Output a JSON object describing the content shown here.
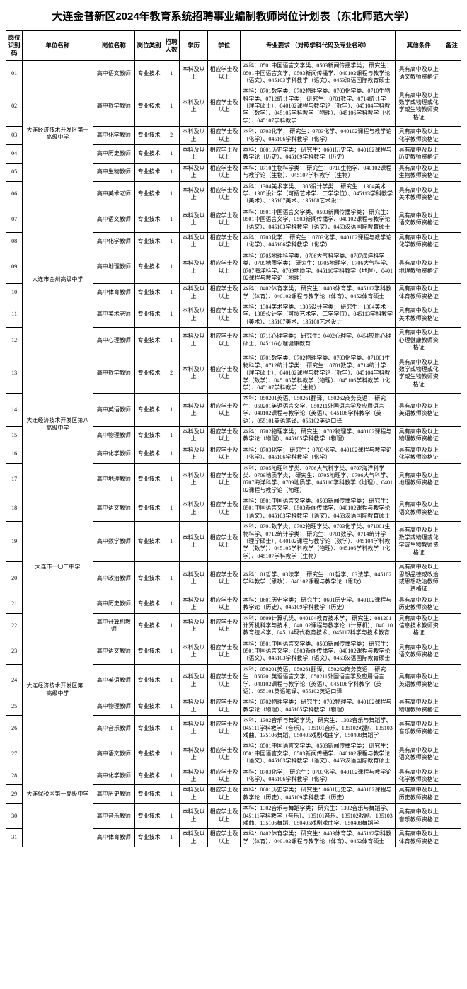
{
  "title": "大连金普新区2024年教育系统招聘事业编制教师岗位计划表（东北师范大学）",
  "headers": {
    "id": "岗位识别码",
    "unit": "单位名称",
    "post": "岗位名称",
    "cat": "岗位类别",
    "num": "招聘人数",
    "edu": "学历",
    "deg": "学位",
    "req": "专业要求\n（对照学科代码及专业名称）",
    "other": "其他条件",
    "note": "备注"
  },
  "common": {
    "cat": "专业技术",
    "edu": "本科及以上",
    "deg": "相应学士及以上"
  },
  "units": [
    {
      "name": "大连经济技术开发区第一高级中学",
      "rows": [
        {
          "id": "01",
          "post": "高中语文教师",
          "num": "1",
          "req": "本科：0501中国语言文学类、0503新闻传播学类；\n研究生：0501中国语言文学、0503新闻传播学、040102课程与教学论（语文）、045103学科教学（语文）、0453汉语国际教育硕士",
          "other": "具有高中及以上语文教师资格证"
        },
        {
          "id": "02",
          "post": "高中数学教师",
          "num": "1",
          "req": "本科：0701数学类、0702物理学类、0703化学类、0710生物科学类、0712统计学类；\n研究生：0701数学、0714统计学（理学硕士）、040102课程与教学论（数学）、045104学科教学（数学）、045105学科教学（物理）、045106学科教学（化学）、045107学科教学",
          "other": "具有高中及以上数学或物理或化学或生物教师资格证"
        },
        {
          "id": "03",
          "post": "高中化学教师",
          "num": "2",
          "req": "本科：0703化学；\n研究生：0703化学、040102课程与教学论（化学）、045106学科教学（化学）",
          "other": "具有高中及以上化学教师资格证"
        },
        {
          "id": "04",
          "post": "高中历史教师",
          "num": "1",
          "req": "本科：0601历史学类；\n研究生：0601历史学、040102课程与教学论（历史）、045109学科教学（历史）",
          "other": "具有高中及以上历史教师资格证"
        },
        {
          "id": "05",
          "post": "高中生物教师",
          "num": "1",
          "req": "本科：0710生物科学类；\n研究生：0710生物学、040102课程与教学论（生物）、045107学科教学（生物）",
          "other": "具有高中及以上生物教师资格证"
        },
        {
          "id": "06",
          "post": "高中美术老师",
          "num": "1",
          "req": "本科：1304美术学类、1305设计学类；\n研究生：1304美术学、1305设计学（可授艺术学、工学学位）、045113学科教学（美术）、135107美术、135108艺术设计",
          "other": "具有高中及以上美术教师资格证"
        }
      ]
    },
    {
      "name": "大连市金州高级中学",
      "rows": [
        {
          "id": "07",
          "post": "高中语文教师",
          "num": "1",
          "req": "本科：0501中国语言文学类、0503新闻传播学类；\n研究生：0501中国语言文学、0503新闻传播学、040102课程与教学论（语文）、045103学科教学（语文）、0453汉语国际教育硕士",
          "other": "具有高中及以上语文教师资格证"
        },
        {
          "id": "08",
          "post": "高中化学教师",
          "num": "1",
          "req": "本科：0703化学；\n研究生：0703化学、040102课程与教学论（化学）、045106学科教学（化学）",
          "other": "具有高中及以上化学教师资格证"
        },
        {
          "id": "09",
          "post": "高中地理教师",
          "num": "1",
          "req": "本科：0705地理科学类、0706大气科学类、0707海洋科学类、0709地质学类；\n研究生：0705地理学、0706大气科学、0707海洋科学、0709地质学、045110学科教学（地理）、040102课程与教学论（地理）",
          "other": "具有高中及以上地理教师资格证"
        },
        {
          "id": "10",
          "post": "高中体育教师",
          "num": "1",
          "req": "本科：0402体育学类；\n研究生：0403体育学、045112学科教学（体育）、040102课程与教学论（体育）、0452体育硕士",
          "other": "具有高中及以上体育教师资格证"
        },
        {
          "id": "11",
          "post": "高中美术老师",
          "num": "1",
          "req": "本科：1304美术学类、1305设计学类；\n研究生：1304美术学、1305设计学（可授艺术学、工学学位）、045113学科教学（美术）、135107美术、135108艺术设计",
          "other": "具有高中及以上美术教师资格证"
        },
        {
          "id": "12",
          "post": "高中心理教师",
          "num": "1",
          "req": "本科：0711心理学类；\n研究生：0402心理学、0454应用心理硕士、045116心理健康教育",
          "other": "具有高中及以上心理健康教师资格证"
        }
      ]
    },
    {
      "name": "大连经济技术开发区第八高级中学",
      "rows": [
        {
          "id": "13",
          "post": "高中数学教师",
          "num": "2",
          "req": "本科：0701数学类、0702物理学类、0703化学类、071001生物科学、0712统计学类；\n研究生：0701数学、0714统计学（理学硕士）、040102课程与教学论（数学）、045104学科教学（数学）、045105学科教学（物理）、045106学科教学（化学）、045107学科教学（生物）",
          "other": "具有高中及以上数学或物理或化学或生物教师资格证"
        },
        {
          "id": "14",
          "post": "高中英语教师",
          "num": "1",
          "req": "本科：050201英语、050261翻译、050262商务英语；\n研究生：050201英语语言文学、050211外国语言学及应用语言学、040102课程与教学论（英语）、045108学科教学（英语）、055101英语笔译、055102英语口译",
          "other": "具有高中及以上英语教师资格证"
        },
        {
          "id": "15",
          "post": "高中物理教师",
          "num": "1",
          "req": "本科：0702物理学类；\n研究生：0702物理学、040102课程与教学论（物理）、045105学科教学（物理）",
          "other": "具有高中及以上物理教师资格证"
        },
        {
          "id": "16",
          "post": "高中化学教师",
          "num": "1",
          "req": "本科：0703化学；\n研究生：0703化学、040102课程与教学论（化学）、045106学科教学（化学）",
          "other": "具有高中及以上化学教师资格证"
        },
        {
          "id": "17",
          "post": "高中地理教师",
          "num": "1",
          "req": "本科：0705地理科学类、0706大气科学类、0707海洋科学类、0709地质学类；\n研究生：0705地理学、0706大气科学、0707海洋科学、0709地质学、045110学科教学（地理）、040102课程与教学论（地理）",
          "other": "具有高中及以上地理教师资格证"
        }
      ]
    },
    {
      "name": "大连市一〇二中学",
      "rows": [
        {
          "id": "18",
          "post": "高中语文教师",
          "num": "1",
          "req": "本科：0501中国语言文学类、0503新闻传播学类；\n研究生：0501中国语言文学、0503新闻传播学、040102课程与教学论（语文）、045103学科教学（语文）、0453汉语国际教育硕士",
          "other": "具有高中及以上语文教师资格证"
        },
        {
          "id": "19",
          "post": "高中数学教师",
          "num": "1",
          "req": "本科：0701数学类、0702物理学类、0703化学类、071001生物科学、0712统计学类；\n研究生：0701数学、0714统计学（理学硕士）、040102课程与教学论（数学）、045104学科教学（数学）、045105学科教学（物理）、045106学科教学（化学）、045107学科教学（生物）",
          "other": "具有高中及以上数学或物理或化学或生物教师资格证"
        },
        {
          "id": "20",
          "post": "高中政治教师",
          "num": "1",
          "req": "本科：01哲学、03法学；\n研究生：01哲学、03法学、045102学科教学（思政）、040102课程与教学论（思政）",
          "other": "具有高中及以上思想品德或政治或思想政治教师资格证"
        },
        {
          "id": "21",
          "post": "高中历史教师",
          "num": "1",
          "req": "本科：0601历史学类；\n研究生：0601历史学、040102课程与教学论（历史）、045109学科教学（历史）",
          "other": "具有高中及以上历史教师资格证"
        },
        {
          "id": "22",
          "post": "高中计算机教师",
          "num": "1",
          "req": "本科：0809计算机类、040104教育技术学；\n研究生：081201计算机科学与技术、040102课程与教学论（计算机）、040110教育技术学、045114现代教育技术、045117科学与技术教育",
          "other": "具有高中及以上信息技术教师资格证"
        }
      ]
    },
    {
      "name": "大连经济技术开发区第十高级中学",
      "rows": [
        {
          "id": "23",
          "post": "高中语文教师",
          "num": "1",
          "req": "本科：0501中国语言文学类、0503新闻传播学类；\n研究生：0501中国语言文学、0503新闻传播学、040102课程与教学论（语文）、045103学科教学（语文）、0453汉语国际教育硕士",
          "other": "具有高中及以上语文教师资格证"
        },
        {
          "id": "24",
          "post": "高中英语教师",
          "num": "1",
          "req": "本科：050201英语、050261翻译、050262商务英语；\n研究生：050201英语语言文学、050211外国语言学及应用语言学、040102课程与教学论（英语）、045108学科教学（英语）、055101英语笔译、055102英语口译",
          "other": "具有高中及以上英语教师资格证"
        },
        {
          "id": "25",
          "post": "高中物理教师",
          "num": "1",
          "req": "本科：0702物理学类；\n研究生：0702物理学、040102课程与教学论（物理）、045105学科教学（物理）",
          "other": "具有高中及以上物理教师资格证"
        },
        {
          "id": "26",
          "post": "高中音乐教师",
          "num": "1",
          "req": "本科：1302音乐与舞蹈学类；\n研究生：1302音乐与舞蹈学、045111学科教学（音乐）、135101音乐、135102戏剧、135103戏曲、135106舞蹈、050405戏剧戏曲学、050408舞蹈学",
          "other": "具有高中及以上音乐教师资格证"
        }
      ]
    },
    {
      "name": "大连保税区第一高级中学",
      "rows": [
        {
          "id": "27",
          "post": "高中语文教师",
          "num": "1",
          "req": "本科：0501中国语言文学类、0503新闻传播学类；\n研究生：0501中国语言文学、0503新闻传播学、040102课程与教学论（语文）、045103学科教学（语文）、0453汉语国际教育硕士",
          "other": "具有高中及以上语文教师资格证"
        },
        {
          "id": "28",
          "post": "高中化学教师",
          "num": "1",
          "req": "本科：0703化学；\n研究生：0703化学、040102课程与教学论（化学）、045106学科教学（化学）",
          "other": "具有高中及以上化学教师资格证"
        },
        {
          "id": "29",
          "post": "高中历史教师",
          "num": "1",
          "req": "本科：0601历史学类；\n研究生：0601历史学、040102课程与教学论（历史）、045109学科教学（历史）",
          "other": "具有高中及以上历史教师资格证"
        },
        {
          "id": "30",
          "post": "高中音乐教师",
          "num": "1",
          "req": "本科：1302音乐与舞蹈学类；\n研究生：1302音乐与舞蹈学、045111学科教学（音乐）、135101音乐、135102戏剧、135103戏曲、135106舞蹈、050405戏剧戏曲学、050408舞蹈学",
          "other": "具有高中及以上音乐教师资格证"
        },
        {
          "id": "31",
          "post": "高中体育教师",
          "num": "1",
          "req": "本科：0402体育学类；\n研究生：0403体育学、045112学科教学（体育）、040102课程与教学论（体育）、0452体育硕士",
          "other": "具有高中及以上体育教师资格证"
        }
      ]
    }
  ]
}
